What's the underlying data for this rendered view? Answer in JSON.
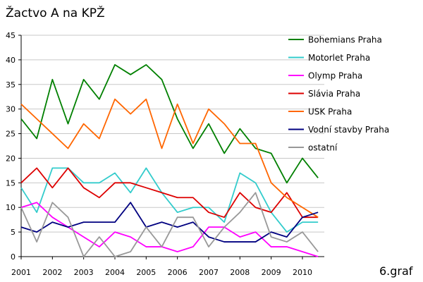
{
  "chart_data": {
    "type": "line",
    "title": "Žactvo A na KPŽ",
    "footer": "6.graf",
    "ylim": [
      0,
      45
    ],
    "y_ticks": [
      0,
      5,
      10,
      15,
      20,
      25,
      30,
      35,
      40,
      45
    ],
    "xlim": [
      2001,
      2010.7
    ],
    "x_ticks": [
      "2001",
      "2002",
      "2003",
      "2004",
      "2005",
      "2006",
      "2007",
      "2008",
      "2009",
      "2010"
    ],
    "x": [
      2001,
      2001.5,
      2002,
      2002.5,
      2003,
      2003.5,
      2004,
      2004.5,
      2005,
      2005.5,
      2006,
      2006.5,
      2007,
      2007.5,
      2008,
      2008.5,
      2009,
      2009.5,
      2010,
      2010.5
    ],
    "grid": "horizontal",
    "legend_position": "right",
    "series": [
      {
        "name": "Bohemians Praha",
        "color": "#008000",
        "values": [
          28,
          24,
          36,
          27,
          36,
          32,
          39,
          37,
          39,
          36,
          28,
          22,
          27,
          21,
          26,
          22,
          21,
          15,
          20,
          16
        ]
      },
      {
        "name": "Motorlet Praha",
        "color": "#33cccc",
        "values": [
          14,
          9,
          18,
          18,
          15,
          15,
          17,
          13,
          18,
          13,
          9,
          10,
          10,
          7,
          17,
          15,
          9,
          5,
          7,
          7
        ]
      },
      {
        "name": "Olymp Praha",
        "color": "#ff00ff",
        "values": [
          10,
          11,
          8,
          6,
          4,
          2,
          5,
          4,
          2,
          2,
          1,
          2,
          6,
          6,
          4,
          5,
          2,
          2,
          1,
          0
        ]
      },
      {
        "name": "Slávia Praha",
        "color": "#dd0000",
        "values": [
          15,
          18,
          14,
          18,
          14,
          12,
          15,
          15,
          14,
          13,
          12,
          12,
          9,
          8,
          13,
          10,
          9,
          13,
          8,
          8
        ]
      },
      {
        "name": "USK Praha",
        "color": "#ff6600",
        "values": [
          31,
          28,
          25,
          22,
          27,
          24,
          32,
          29,
          32,
          22,
          31,
          23,
          30,
          27,
          23,
          23,
          15,
          12,
          10,
          8
        ]
      },
      {
        "name": "Vodní stavby Praha",
        "color": "#000080",
        "values": [
          6,
          5,
          7,
          6,
          7,
          7,
          7,
          11,
          6,
          7,
          6,
          7,
          4,
          3,
          3,
          3,
          5,
          4,
          8,
          9
        ]
      },
      {
        "name": "ostatní",
        "color": "#999999",
        "values": [
          10,
          3,
          11,
          8,
          0,
          4,
          0,
          1,
          6,
          2,
          8,
          8,
          2,
          6,
          9,
          13,
          4,
          3,
          5,
          1
        ]
      }
    ]
  }
}
